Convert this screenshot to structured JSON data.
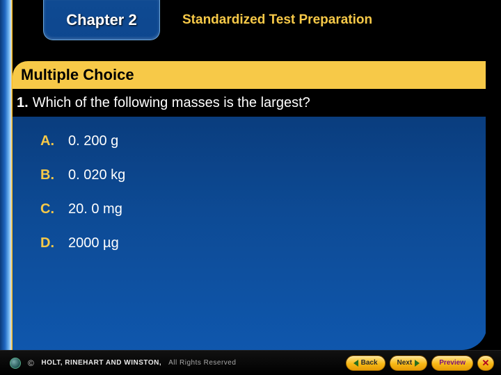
{
  "header": {
    "chapter_label": "Chapter 2",
    "subtitle": "Standardized Test Preparation"
  },
  "section": {
    "title": "Multiple Choice"
  },
  "question": {
    "number": "1.",
    "text": "Which of the following masses is the largest?",
    "choices": [
      {
        "letter": "A.",
        "value": "0. 200 g"
      },
      {
        "letter": "B.",
        "value": "0. 020 kg"
      },
      {
        "letter": "C.",
        "value": "20. 0 mg"
      },
      {
        "letter": "D.",
        "value": "2000 µg"
      }
    ]
  },
  "footer": {
    "brand": "HOLT, RINEHART AND WINSTON,",
    "rights": "All Rights Reserved",
    "nav": {
      "back": "Back",
      "next": "Next",
      "preview": "Preview"
    }
  },
  "colors": {
    "gold": "#f7c948",
    "blue_dark": "#0a3d7e",
    "blue_light": "#0f57ad",
    "tab_blue": "#0d478f",
    "black": "#000000",
    "white": "#ffffff"
  }
}
